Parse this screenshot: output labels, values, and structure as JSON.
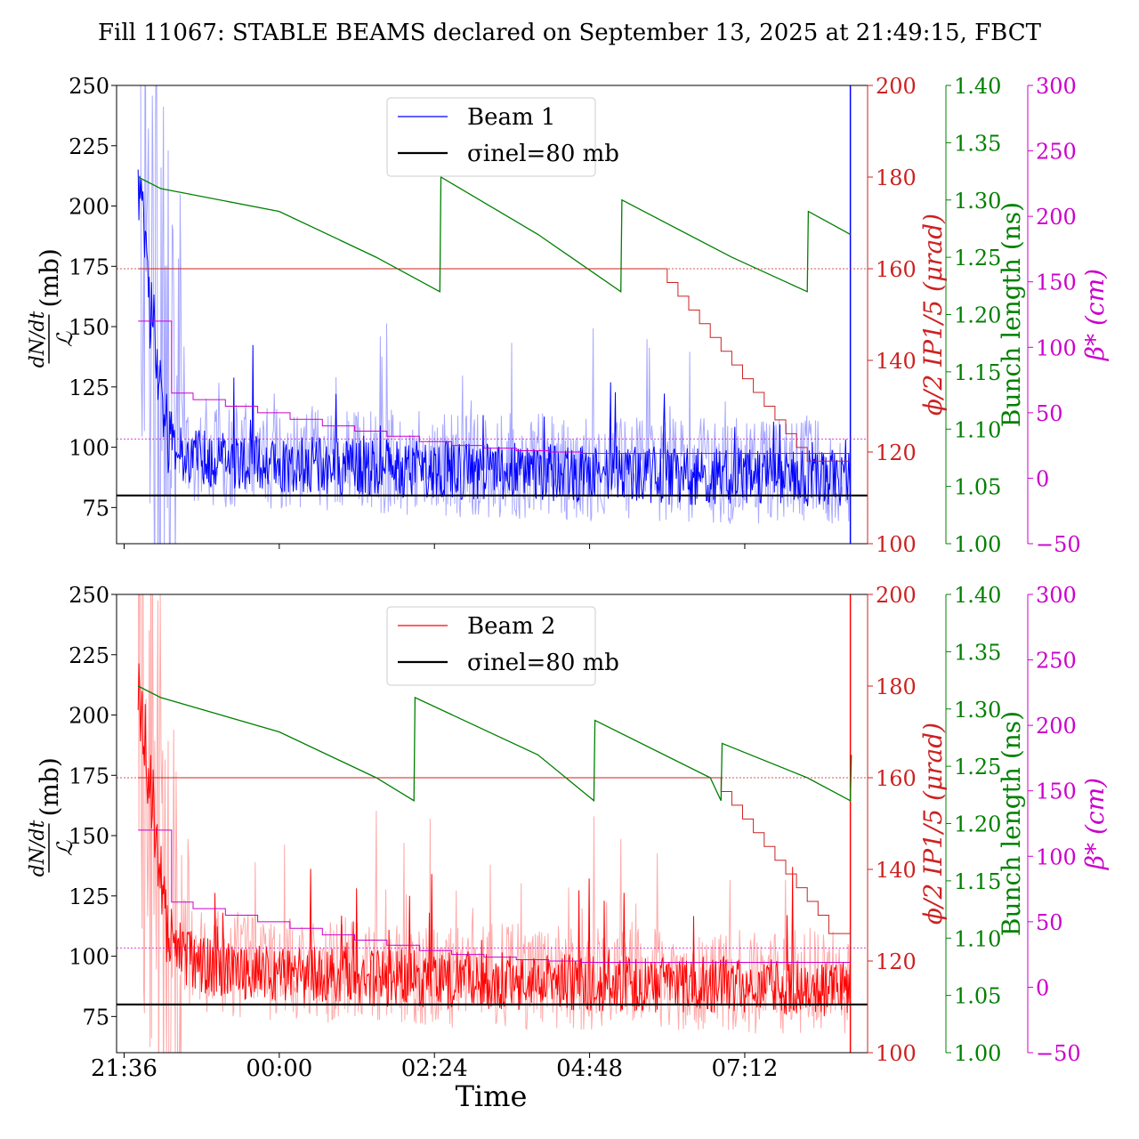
{
  "figure": {
    "title": "Fill 11067: STABLE BEAMS declared on September 13, 2025 at 21:49:15, FBCT",
    "xlabel": "Time",
    "x_ticks": [
      "21:36",
      "00:00",
      "02:24",
      "04:48",
      "07:12"
    ]
  },
  "axes_labels": {
    "ylabel_rate": "dN/dt / ℒ (mb)",
    "ylabel_rate_num": "dN/dt",
    "ylabel_rate_den": "ℒ",
    "ylabel_rate_unit": "(mb)",
    "ylabel_angle": "ϕ/2 IP1/5 (μrad)",
    "ylabel_bunch": "Bunch length (ns)",
    "ylabel_beta": "β* (cm)"
  },
  "colors": {
    "beam1": "#0000ff",
    "beam1_light": "#a8a8ff",
    "beam2": "#ff0000",
    "beam2_light": "#ffaaaa",
    "angle": "#cc2222",
    "bunch": "#008000",
    "beta": "#cc00cc",
    "sigma": "#000000"
  },
  "chart_data": [
    {
      "type": "line",
      "panel": "top",
      "legend": [
        "Beam 1",
        "σinel=80 mb"
      ],
      "legend_placement": "upper-center",
      "x_unit": "time (HH:MM)",
      "xlim": [
        "21:29",
        "09:06"
      ],
      "axes": {
        "rate": {
          "ylim": [
            60,
            250
          ],
          "ticks": [
            75,
            100,
            125,
            150,
            175,
            200,
            225,
            250
          ]
        },
        "angle": {
          "ylim": [
            100,
            200
          ],
          "ticks": [
            100,
            120,
            140,
            160,
            180,
            200
          ]
        },
        "bunch": {
          "ylim": [
            1.0,
            1.4
          ],
          "ticks": [
            "1.00",
            "1.05",
            "1.10",
            "1.15",
            "1.20",
            "1.25",
            "1.30",
            "1.35",
            "1.40"
          ]
        },
        "beta": {
          "ylim": [
            -50,
            300
          ],
          "ticks": [
            -50,
            0,
            50,
            100,
            150,
            200,
            250,
            300
          ]
        }
      },
      "sigma_inel_mb": 80,
      "series": [
        {
          "name": "Beam 1",
          "axis": "rate",
          "style": "noisy",
          "x": [
            "21:49",
            "22:00",
            "22:15",
            "22:30",
            "23:00",
            "23:30",
            "00:00",
            "00:30",
            "01:00",
            "01:30",
            "02:00",
            "02:30",
            "03:00",
            "03:30",
            "04:00",
            "04:30",
            "05:00",
            "05:30",
            "06:00",
            "06:30",
            "07:00",
            "07:30",
            "08:00",
            "08:30",
            "08:50"
          ],
          "y": [
            210,
            160,
            110,
            96,
            95,
            94,
            93,
            93,
            92,
            92,
            91,
            91,
            90,
            90,
            90,
            89,
            89,
            89,
            88,
            88,
            88,
            88,
            87,
            87,
            87
          ]
        },
        {
          "name": "",
          "axis": "angle",
          "style": "step",
          "x": [
            "21:49",
            "05:50",
            "06:00",
            "06:10",
            "06:20",
            "06:30",
            "06:40",
            "06:50",
            "07:00",
            "07:10",
            "07:20",
            "07:30",
            "07:40",
            "07:50",
            "08:00",
            "08:10",
            "08:20",
            "08:30",
            "08:50"
          ],
          "y": [
            160,
            160,
            157,
            154,
            151,
            148,
            145,
            142,
            139,
            136,
            133,
            130,
            127,
            124,
            121,
            118,
            118,
            118,
            118
          ]
        },
        {
          "name": "",
          "axis": "bunch",
          "style": "line",
          "x": [
            "21:49",
            "22:10",
            "00:00",
            "01:30",
            "02:29",
            "02:30",
            "04:00",
            "05:17",
            "05:18",
            "07:00",
            "08:10",
            "08:11",
            "08:50"
          ],
          "y": [
            1.32,
            1.31,
            1.29,
            1.25,
            1.22,
            1.32,
            1.27,
            1.22,
            1.3,
            1.25,
            1.22,
            1.29,
            1.27
          ]
        },
        {
          "name": "",
          "axis": "beta",
          "style": "step",
          "x": [
            "21:49",
            "22:05",
            "22:20",
            "22:40",
            "23:10",
            "23:40",
            "00:10",
            "00:40",
            "01:10",
            "01:40",
            "02:10",
            "02:40",
            "03:10",
            "03:40",
            "04:10",
            "04:40",
            "05:10",
            "08:50"
          ],
          "y": [
            120,
            120,
            65,
            60,
            55,
            50,
            45,
            40,
            36,
            32,
            28,
            25,
            23,
            21,
            20,
            19,
            19,
            19
          ]
        },
        {
          "name": "",
          "axis": "angle",
          "style": "hline",
          "y": [
            160
          ]
        },
        {
          "name": "",
          "axis": "beta",
          "style": "hline",
          "y": [
            30
          ]
        },
        {
          "name": "σinel=80 mb",
          "axis": "rate",
          "style": "hline",
          "y": [
            80
          ]
        }
      ]
    },
    {
      "type": "line",
      "panel": "bottom",
      "legend": [
        "Beam 2",
        "σinel=80 mb"
      ],
      "legend_placement": "upper-center",
      "x_unit": "time (HH:MM)",
      "xlim": [
        "21:29",
        "09:06"
      ],
      "axes": {
        "rate": {
          "ylim": [
            60,
            250
          ],
          "ticks": [
            75,
            100,
            125,
            150,
            175,
            200,
            225,
            250
          ]
        },
        "angle": {
          "ylim": [
            100,
            200
          ],
          "ticks": [
            100,
            120,
            140,
            160,
            180,
            200
          ]
        },
        "bunch": {
          "ylim": [
            1.0,
            1.4
          ],
          "ticks": [
            "1.00",
            "1.05",
            "1.10",
            "1.15",
            "1.20",
            "1.25",
            "1.30",
            "1.35",
            "1.40"
          ]
        },
        "beta": {
          "ylim": [
            -50,
            300
          ],
          "ticks": [
            -50,
            0,
            50,
            100,
            150,
            200,
            250,
            300
          ]
        }
      },
      "sigma_inel_mb": 80,
      "series": [
        {
          "name": "Beam 2",
          "axis": "rate",
          "style": "noisy",
          "x": [
            "21:49",
            "22:00",
            "22:15",
            "22:30",
            "23:00",
            "23:30",
            "00:00",
            "00:30",
            "01:00",
            "01:30",
            "02:00",
            "02:30",
            "03:00",
            "03:30",
            "04:00",
            "04:30",
            "05:00",
            "05:30",
            "06:00",
            "06:30",
            "07:00",
            "07:30",
            "08:00",
            "08:30",
            "08:50"
          ],
          "y": [
            215,
            170,
            115,
            100,
            95,
            94,
            93,
            92,
            92,
            91,
            91,
            90,
            90,
            90,
            89,
            89,
            89,
            88,
            88,
            88,
            88,
            87,
            87,
            87,
            87
          ]
        },
        {
          "name": "",
          "axis": "angle",
          "style": "step",
          "x": [
            "21:49",
            "06:40",
            "06:50",
            "07:00",
            "07:10",
            "07:20",
            "07:30",
            "07:40",
            "07:50",
            "08:00",
            "08:10",
            "08:20",
            "08:30",
            "08:50"
          ],
          "y": [
            160,
            160,
            157,
            154,
            151,
            148,
            145,
            142,
            139,
            136,
            133,
            130,
            126,
            120
          ]
        },
        {
          "name": "",
          "axis": "bunch",
          "style": "line",
          "x": [
            "21:49",
            "22:10",
            "00:00",
            "01:30",
            "02:05",
            "02:06",
            "04:00",
            "04:52",
            "04:53",
            "06:40",
            "06:50",
            "06:51",
            "08:10",
            "08:50",
            "08:51"
          ],
          "y": [
            1.32,
            1.31,
            1.28,
            1.24,
            1.22,
            1.31,
            1.26,
            1.22,
            1.29,
            1.24,
            1.22,
            1.27,
            1.24,
            1.22,
            1.26
          ]
        },
        {
          "name": "",
          "axis": "beta",
          "style": "step",
          "x": [
            "21:49",
            "22:05",
            "22:20",
            "22:40",
            "23:10",
            "23:40",
            "00:10",
            "00:40",
            "01:10",
            "01:40",
            "02:10",
            "02:40",
            "03:10",
            "03:40",
            "04:10",
            "04:40",
            "05:10",
            "08:50"
          ],
          "y": [
            120,
            120,
            65,
            60,
            55,
            50,
            45,
            40,
            36,
            32,
            28,
            25,
            23,
            21,
            20,
            19,
            19,
            19
          ]
        },
        {
          "name": "",
          "axis": "angle",
          "style": "hline",
          "y": [
            160
          ]
        },
        {
          "name": "",
          "axis": "beta",
          "style": "hline",
          "y": [
            30
          ]
        },
        {
          "name": "σinel=80 mb",
          "axis": "rate",
          "style": "hline",
          "y": [
            80
          ]
        }
      ]
    }
  ]
}
